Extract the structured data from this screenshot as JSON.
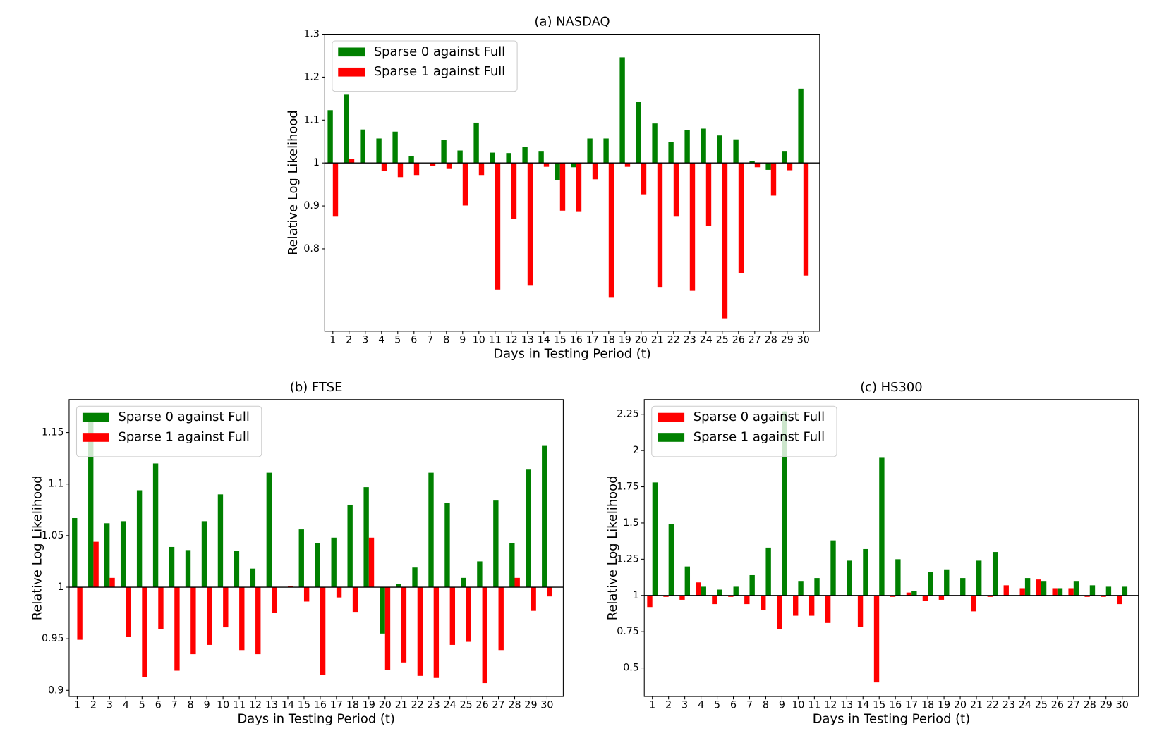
{
  "chart_data": [
    {
      "type": "bar",
      "title": "(a) NASDAQ",
      "x_label": "Days in Testing Period (t)",
      "y_label": "Relative Log Likelihood",
      "categories": [
        "1",
        "2",
        "3",
        "4",
        "5",
        "6",
        "7",
        "8",
        "9",
        "10",
        "11",
        "12",
        "13",
        "14",
        "15",
        "16",
        "17",
        "18",
        "19",
        "20",
        "21",
        "22",
        "23",
        "24",
        "25",
        "26",
        "27",
        "28",
        "29",
        "30"
      ],
      "bottom": 1,
      "ylim": [
        0.608,
        1.3
      ],
      "yticks": [
        0.8,
        0.9,
        1,
        1.1,
        1.2,
        1.3
      ],
      "legend": "upper left",
      "grid": false,
      "series": [
        {
          "name": "Sparse 0 against Full",
          "color": "#008000",
          "values": [
            1.123,
            1.159,
            1.078,
            1.057,
            1.073,
            1.016,
            1.0,
            1.054,
            1.029,
            1.094,
            1.024,
            1.023,
            1.038,
            1.028,
            0.96,
            0.99,
            1.057,
            1.057,
            1.246,
            1.142,
            1.092,
            1.049,
            1.076,
            1.08,
            1.064,
            1.055,
            1.005,
            0.984,
            1.028,
            1.173
          ]
        },
        {
          "name": "Sparse 1 against Full",
          "color": "#ff0000",
          "values": [
            0.875,
            1.009,
            1.0,
            0.981,
            0.967,
            0.972,
            0.993,
            0.986,
            0.901,
            0.972,
            0.705,
            0.87,
            0.714,
            0.991,
            0.889,
            0.886,
            0.962,
            0.686,
            0.991,
            0.927,
            0.711,
            0.875,
            0.702,
            0.853,
            0.638,
            0.744,
            0.99,
            0.924,
            0.983,
            0.738
          ]
        }
      ]
    },
    {
      "type": "bar",
      "title": "(b) FTSE",
      "x_label": "Days in Testing Period (t)",
      "y_label": "Relative Log Likelihood",
      "categories": [
        "1",
        "2",
        "3",
        "4",
        "5",
        "6",
        "7",
        "8",
        "9",
        "10",
        "11",
        "12",
        "13",
        "14",
        "15",
        "16",
        "17",
        "18",
        "19",
        "20",
        "21",
        "22",
        "23",
        "24",
        "25",
        "26",
        "27",
        "28",
        "29",
        "30"
      ],
      "bottom": 1,
      "ylim": [
        0.894,
        1.182
      ],
      "yticks": [
        0.9,
        0.95,
        1,
        1.05,
        1.1,
        1.15
      ],
      "legend": "upper left",
      "grid": false,
      "series": [
        {
          "name": "Sparse 0 against Full",
          "color": "#008000",
          "values": [
            1.067,
            1.167,
            1.062,
            1.064,
            1.094,
            1.12,
            1.039,
            1.036,
            1.064,
            1.09,
            1.035,
            1.018,
            1.111,
            1.0,
            1.056,
            1.043,
            1.048,
            1.08,
            1.097,
            0.955,
            1.003,
            1.019,
            1.111,
            1.082,
            1.009,
            1.025,
            1.084,
            1.043,
            1.114,
            1.137
          ]
        },
        {
          "name": "Sparse 1 against Full",
          "color": "#ff0000",
          "values": [
            0.949,
            1.044,
            1.009,
            0.952,
            0.913,
            0.959,
            0.919,
            0.935,
            0.944,
            0.961,
            0.939,
            0.935,
            0.975,
            1.001,
            0.986,
            0.915,
            0.99,
            0.976,
            1.048,
            0.92,
            0.927,
            0.914,
            0.912,
            0.944,
            0.947,
            0.907,
            0.939,
            1.009,
            0.977,
            0.991
          ]
        }
      ]
    },
    {
      "type": "bar",
      "title": "(c) HS300",
      "x_label": "Days in Testing Period (t)",
      "y_label": "Relative Log Likelihood",
      "categories": [
        "1",
        "2",
        "3",
        "4",
        "5",
        "6",
        "7",
        "8",
        "9",
        "10",
        "11",
        "12",
        "13",
        "14",
        "15",
        "16",
        "17",
        "18",
        "19",
        "20",
        "21",
        "22",
        "23",
        "24",
        "25",
        "26",
        "27",
        "28",
        "29",
        "30"
      ],
      "bottom": 1,
      "ylim": [
        0.303,
        2.352
      ],
      "yticks": [
        0.5,
        0.75,
        1,
        1.25,
        1.5,
        1.75,
        2,
        2.25
      ],
      "legend": "upper left",
      "grid": false,
      "series": [
        {
          "name": "Sparse 0 against Full",
          "color": "#ff0000",
          "values": [
            0.92,
            0.99,
            0.97,
            1.09,
            0.94,
            0.99,
            0.94,
            0.9,
            0.77,
            0.86,
            0.86,
            0.81,
            1.0,
            0.78,
            0.4,
            0.99,
            1.02,
            0.96,
            0.97,
            1.0,
            0.89,
            0.99,
            1.07,
            1.05,
            1.11,
            1.05,
            1.05,
            0.99,
            0.99,
            0.94
          ]
        },
        {
          "name": "Sparse 1 against Full",
          "color": "#008000",
          "values": [
            1.78,
            1.49,
            1.2,
            1.06,
            1.04,
            1.06,
            1.14,
            1.33,
            2.27,
            1.1,
            1.12,
            1.38,
            1.24,
            1.32,
            1.95,
            1.25,
            1.03,
            1.16,
            1.18,
            1.12,
            1.24,
            1.3,
            1.0,
            1.12,
            1.1,
            1.05,
            1.1,
            1.07,
            1.06,
            1.06
          ]
        }
      ]
    }
  ]
}
